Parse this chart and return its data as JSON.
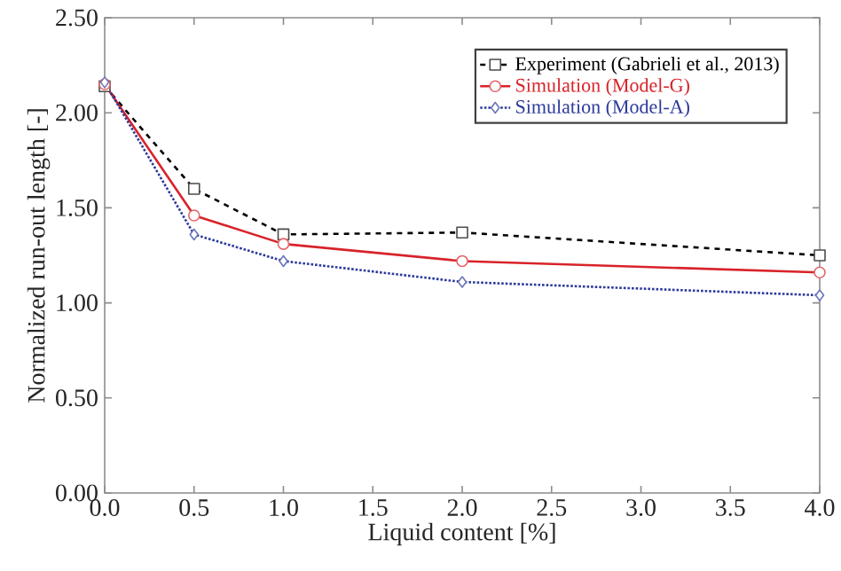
{
  "chart_data": {
    "type": "line",
    "xlabel": "Liquid content [%]",
    "ylabel": "Normalized run-out length [-]",
    "x": [
      0,
      0.5,
      1,
      2,
      4
    ],
    "xlim": [
      0,
      4
    ],
    "ylim": [
      0,
      2.5
    ],
    "xticks": [
      {
        "value": 0,
        "label": "0.0"
      },
      {
        "value": 0.5,
        "label": "0.5"
      },
      {
        "value": 1,
        "label": "1.0"
      },
      {
        "value": 1.5,
        "label": "1.5"
      },
      {
        "value": 2,
        "label": "2.0"
      },
      {
        "value": 2.5,
        "label": "2.5"
      },
      {
        "value": 3,
        "label": "3.0"
      },
      {
        "value": 3.5,
        "label": "3.5"
      },
      {
        "value": 4,
        "label": "4.0"
      }
    ],
    "yticks": [
      {
        "value": 0,
        "label": "0.00"
      },
      {
        "value": 0.5,
        "label": "0.50"
      },
      {
        "value": 1,
        "label": "1.00"
      },
      {
        "value": 1.5,
        "label": "1.50"
      },
      {
        "value": 2,
        "label": "2.00"
      },
      {
        "value": 2.5,
        "label": "2.50"
      }
    ],
    "legend": "top right",
    "series": [
      {
        "name": "Experiment (Gabrieli et al., 2013)",
        "color": "#000000",
        "marker": "square",
        "line_style": "dashed",
        "values": [
          2.14,
          1.6,
          1.36,
          1.37,
          1.25
        ]
      },
      {
        "name": "Simulation (Model-G)",
        "color": "#d8232a",
        "marker": "circle",
        "line_style": "solid",
        "values": [
          2.15,
          1.46,
          1.31,
          1.22,
          1.16
        ]
      },
      {
        "name": "Simulation (Model-A)",
        "color": "#2b3a9a",
        "marker": "diamond",
        "line_style": "dotted",
        "values": [
          2.16,
          1.36,
          1.22,
          1.11,
          1.04
        ]
      }
    ]
  }
}
